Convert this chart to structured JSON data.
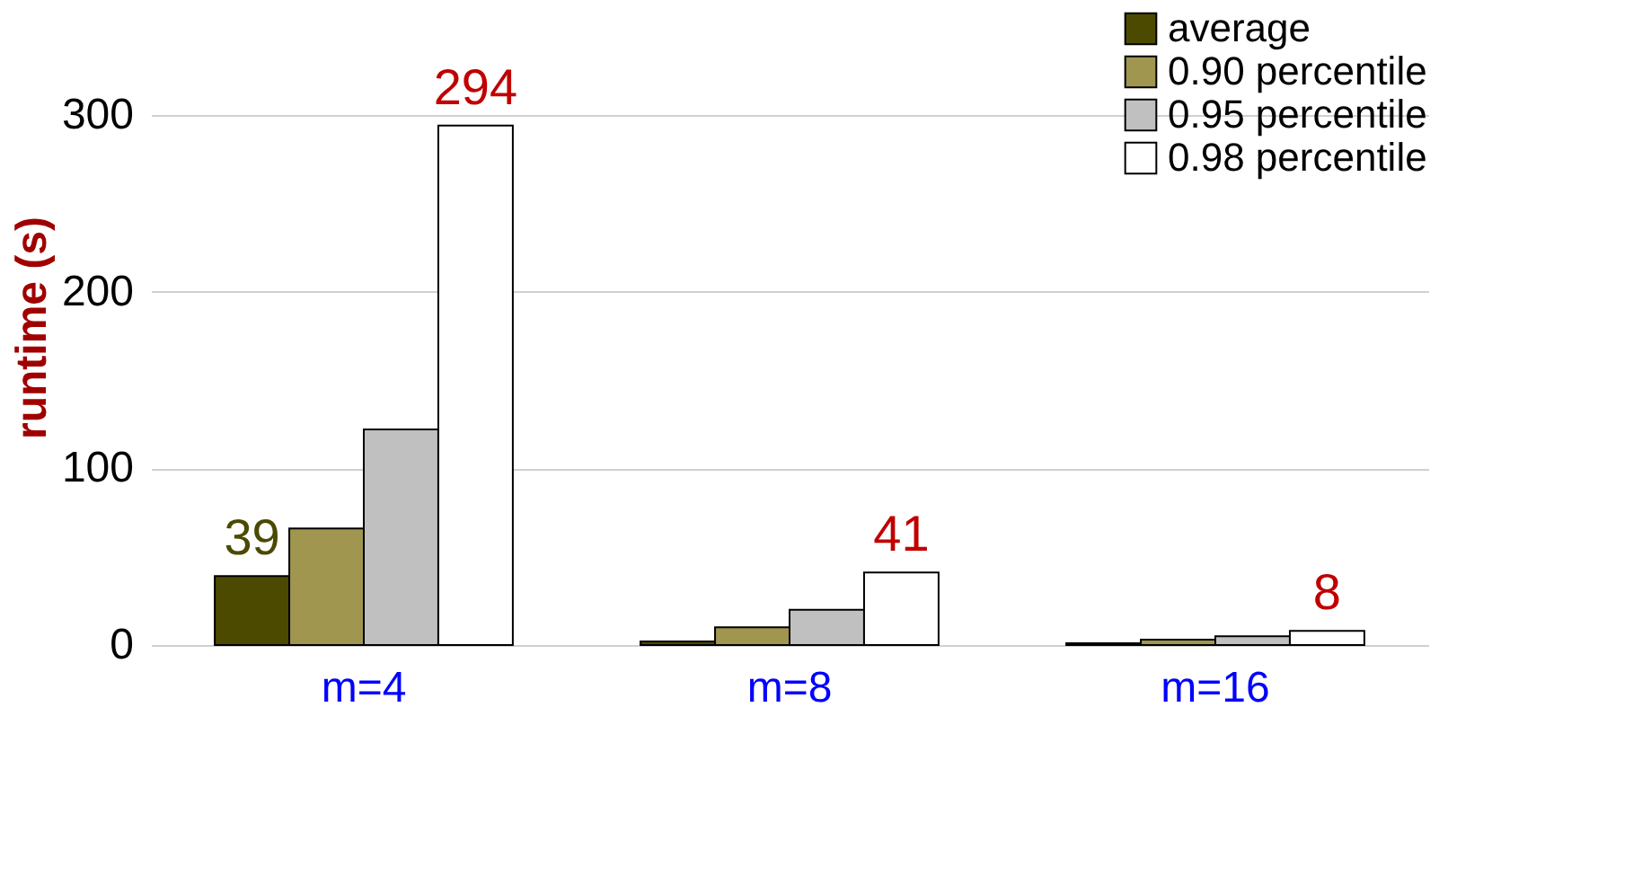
{
  "chart_data": {
    "type": "bar",
    "ylabel": "runtime (s)",
    "categories": [
      "m=4",
      "m=8",
      "m=16"
    ],
    "series": [
      {
        "name": "average",
        "color": "#4b4a00",
        "values": [
          39,
          2,
          1
        ],
        "value_labels": [
          "39",
          null,
          null
        ]
      },
      {
        "name": "0.90 percentile",
        "color": "#a09650",
        "values": [
          66,
          10,
          3
        ]
      },
      {
        "name": "0.95 percentile",
        "color": "#c0c0c0",
        "values": [
          122,
          20,
          5
        ]
      },
      {
        "name": "0.98 percentile",
        "color": "#ffffff",
        "values": [
          294,
          41,
          8
        ],
        "value_labels": [
          "294",
          "41",
          "8"
        ]
      }
    ],
    "ylim": [
      0,
      360
    ],
    "yticks": [
      0,
      100,
      200,
      300
    ],
    "grid": "y",
    "legend": "top right"
  }
}
